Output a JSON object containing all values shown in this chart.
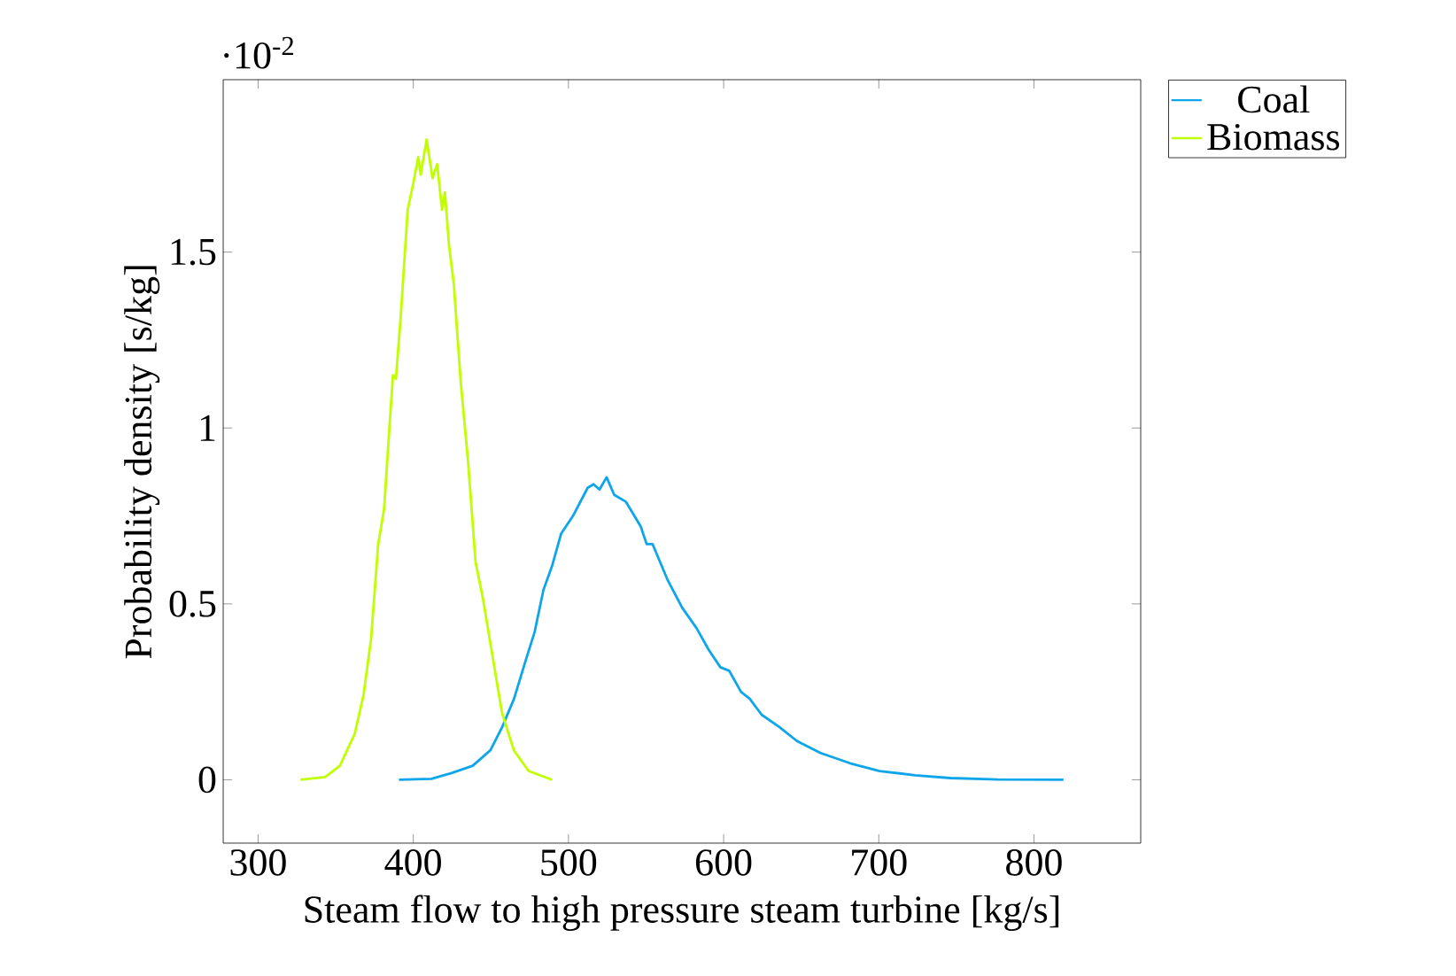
{
  "chart_data": {
    "type": "line",
    "xlabel": "Steam flow to high pressure steam turbine [kg/s]",
    "ylabel": "Probability density [s/kg]",
    "annotations": [
      "·10$^{-2}$"
    ],
    "xlim": [
      277.5,
      868.8
    ],
    "ylim": [
      -0.18,
      1.99
    ],
    "xticks": [
      300,
      400,
      500,
      600,
      700,
      800
    ],
    "yticks": [
      {
        "value": 0,
        "label": "0"
      },
      {
        "value": 0.5,
        "label": "0.5"
      },
      {
        "value": 1,
        "label": "1"
      },
      {
        "value": 1.5,
        "label": "1.5"
      }
    ],
    "grid": false,
    "legend": "top right",
    "marker": "none",
    "line_style": "solid",
    "series": [
      {
        "name": "Coal",
        "color": "#0ea5e9",
        "x": [
          390.8,
          411.7,
          423.1,
          438.3,
          449.7,
          457.3,
          464.9,
          472.5,
          478.2,
          483.9,
          489.6,
          495.3,
          502.9,
          512.4,
          516.2,
          520.0,
          524.6,
          529.5,
          537.1,
          546.6,
          550.4,
          554.2,
          563.7,
          573.2,
          582.7,
          590.3,
          597.9,
          603.6,
          611.2,
          616.9,
          624.5,
          635.9,
          647.3,
          662.5,
          681.5,
          700.5,
          723.3,
          746.1,
          776.5,
          819.0
        ],
        "values": [
          0,
          0.003,
          0.017,
          0.04,
          0.084,
          0.15,
          0.23,
          0.34,
          0.42,
          0.54,
          0.61,
          0.7,
          0.75,
          0.83,
          0.84,
          0.825,
          0.86,
          0.81,
          0.79,
          0.72,
          0.67,
          0.67,
          0.57,
          0.49,
          0.43,
          0.37,
          0.32,
          0.31,
          0.25,
          0.23,
          0.185,
          0.15,
          0.11,
          0.076,
          0.047,
          0.025,
          0.013,
          0.005,
          0.001,
          0
        ]
      },
      {
        "name": "Biomass",
        "color": "#bfff00",
        "x": [
          327.3,
          343.2,
          352.7,
          362.2,
          367.9,
          372.8,
          377.4,
          381.2,
          384.3,
          386.9,
          388.8,
          391.8,
          396.4,
          400.2,
          403.2,
          404.8,
          408.6,
          412.4,
          415.4,
          418.5,
          420.4,
          423.0,
          426.1,
          430.6,
          435.2,
          440.1,
          445.1,
          449.6,
          457.2,
          464.8,
          474.3,
          489.5
        ],
        "values": [
          0,
          0.008,
          0.04,
          0.13,
          0.24,
          0.4,
          0.67,
          0.77,
          0.98,
          1.15,
          1.14,
          1.31,
          1.62,
          1.7,
          1.77,
          1.72,
          1.82,
          1.71,
          1.75,
          1.62,
          1.67,
          1.52,
          1.41,
          1.13,
          0.91,
          0.62,
          0.51,
          0.39,
          0.19,
          0.084,
          0.025,
          0
        ]
      }
    ]
  }
}
